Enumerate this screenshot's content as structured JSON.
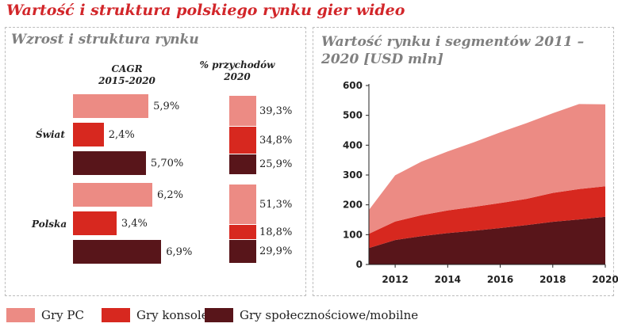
{
  "title": "Wartość i struktura polskiego rynku gier wideo",
  "colors": {
    "pc": "#ec8b84",
    "konsole": "#d7281f",
    "mobile": "#58151a"
  },
  "chart_data": [
    {
      "type": "bar",
      "title": "Wzrost i struktura rynku",
      "cagr_header": [
        "CAGR",
        "2015-2020"
      ],
      "share_header": [
        "% przychodów",
        "2020"
      ],
      "groups": [
        {
          "region": "Świat",
          "cagr_values": [
            5.9,
            2.4,
            5.7
          ],
          "cagr_labels": [
            "5,9%",
            "2,4%",
            "5,70%"
          ],
          "share_values": [
            39.3,
            34.8,
            25.9
          ],
          "share_labels": [
            "39,3%",
            "34,8%",
            "25,9%"
          ]
        },
        {
          "region": "Polska",
          "cagr_values": [
            6.2,
            3.4,
            6.9
          ],
          "cagr_labels": [
            "6,2%",
            "3,4%",
            "6,9%"
          ],
          "share_values": [
            51.3,
            18.8,
            29.9
          ],
          "share_labels": [
            "51,3%",
            "18,8%",
            "29,9%"
          ]
        }
      ]
    },
    {
      "type": "area",
      "title": "Wartość rynku i segmentów 2011 – 2020 [USD mln]",
      "x": [
        2011,
        2012,
        2013,
        2014,
        2015,
        2016,
        2017,
        2018,
        2019,
        2020
      ],
      "series": [
        {
          "name": "Gry społecznościowe/mobilne",
          "values": [
            55,
            82,
            95,
            105,
            113,
            122,
            132,
            143,
            151,
            160
          ]
        },
        {
          "name": "Gry konsole",
          "values": [
            48,
            62,
            70,
            76,
            80,
            84,
            88,
            97,
            102,
            102
          ]
        },
        {
          "name": "Gry PC",
          "values": [
            80,
            155,
            180,
            198,
            217,
            237,
            254,
            267,
            285,
            275
          ]
        }
      ],
      "ylim": [
        0,
        600
      ],
      "yticks": [
        "0",
        "100",
        "200",
        "300",
        "400",
        "500",
        "600"
      ],
      "xticks": [
        "2012",
        "2014",
        "2016",
        "2018",
        "2020"
      ]
    }
  ],
  "legend": [
    {
      "label": "Gry PC"
    },
    {
      "label": "Gry konsole"
    },
    {
      "label": "Gry społecznościowe/mobilne"
    }
  ]
}
